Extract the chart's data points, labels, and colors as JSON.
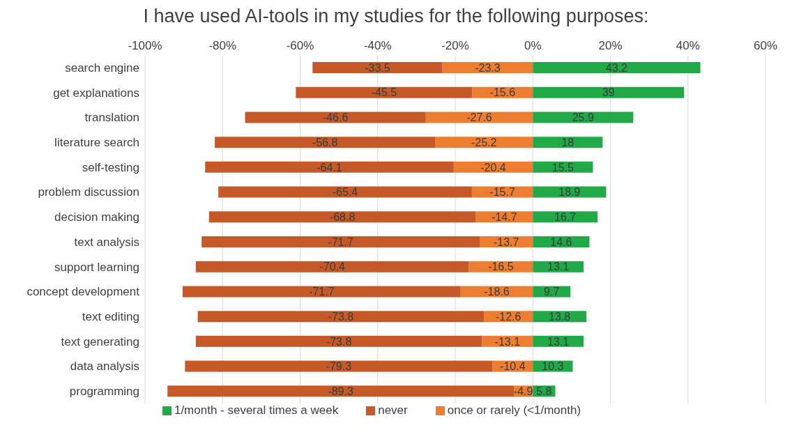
{
  "chart_data": {
    "type": "bar",
    "orientation": "horizontal",
    "stacked": true,
    "title": "I have used AI-tools in my studies for the following purposes:",
    "categories": [
      "search engine",
      "get explanations",
      "translation",
      "literature search",
      "self-testing",
      "problem discussion",
      "decision making",
      "text analysis",
      "support learning",
      "concept development",
      "text editing",
      "text generating",
      "data analysis",
      "programming"
    ],
    "series": [
      {
        "name": "once or rarely (<1/month)",
        "color": "#ed7d31",
        "values": [
          -23.3,
          -15.6,
          -27.6,
          -25.2,
          -20.4,
          -15.7,
          -14.7,
          -13.7,
          -16.5,
          -18.6,
          -12.6,
          -13.1,
          -10.4,
          -4.9
        ]
      },
      {
        "name": "never",
        "color": "#c55a28",
        "values": [
          -33.5,
          -45.5,
          -46.6,
          -56.8,
          -64.1,
          -65.4,
          -68.8,
          -71.7,
          -70.4,
          -71.7,
          -73.8,
          -73.8,
          -79.3,
          -89.3
        ]
      },
      {
        "name": "1/month - several times a week",
        "color": "#21a847",
        "values": [
          43.2,
          39,
          25.9,
          18,
          15.5,
          18.9,
          16.7,
          14.6,
          13.1,
          9.7,
          13.8,
          13.1,
          10.3,
          5.8
        ]
      }
    ],
    "xlim": [
      -100,
      60
    ],
    "xticks": [
      {
        "value": -100,
        "label": "-100%"
      },
      {
        "value": -80,
        "label": "-80%"
      },
      {
        "value": -60,
        "label": "-60%"
      },
      {
        "value": -40,
        "label": "-40%"
      },
      {
        "value": -20,
        "label": "-20%"
      },
      {
        "value": 0,
        "label": "0%"
      },
      {
        "value": 20,
        "label": "20%"
      },
      {
        "value": 40,
        "label": "40%"
      },
      {
        "value": 60,
        "label": "60%"
      }
    ],
    "grid": "x",
    "legend": "bottom",
    "data_labels": true
  }
}
